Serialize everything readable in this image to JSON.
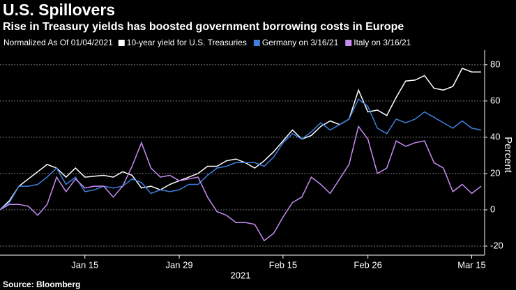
{
  "chart_data": {
    "type": "line",
    "title": "U.S. Spillovers",
    "subtitle": "Rise in Treasury yields has boosted government borrowing costs in Europe",
    "legend_note": "Normalized As Of 01/04/2021",
    "y_label": "Percent",
    "x_label": "2021",
    "source": "Source: Bloomberg",
    "categories": [
      null,
      null,
      null,
      null,
      null,
      null,
      null,
      null,
      null,
      "Jan 15",
      null,
      null,
      null,
      null,
      null,
      null,
      null,
      null,
      null,
      "Jan 29",
      null,
      null,
      null,
      null,
      null,
      null,
      null,
      null,
      null,
      null,
      "Feb 15",
      null,
      null,
      null,
      null,
      null,
      null,
      null,
      null,
      "Feb 26",
      null,
      null,
      null,
      null,
      null,
      null,
      null,
      null,
      null,
      null,
      "Mar 15",
      null
    ],
    "series": [
      {
        "name": "10-year yield for U.S. Treasuries",
        "color": "#ffffff",
        "values": [
          0,
          5,
          13,
          17,
          21,
          25,
          23,
          18,
          23,
          18,
          18.5,
          19,
          18,
          21,
          19,
          12,
          13,
          11,
          14,
          16,
          18,
          20,
          24,
          24,
          27,
          28,
          26,
          23,
          27,
          32,
          38,
          44,
          39,
          41,
          46,
          49,
          47,
          50,
          66,
          54,
          55,
          52,
          62,
          71,
          71.5,
          74,
          67,
          66,
          68,
          78,
          76,
          76
        ]
      },
      {
        "name": "Germany on 3/16/21",
        "color": "#3f80de",
        "values": [
          0,
          4,
          13,
          13,
          14,
          18,
          23,
          14,
          18,
          10,
          11,
          13,
          12,
          13,
          17,
          15,
          9,
          11,
          10,
          11,
          14,
          14,
          19,
          23,
          24,
          26,
          26,
          26,
          24,
          29,
          37,
          42,
          39,
          43,
          48,
          44,
          47,
          50,
          61,
          57,
          45,
          42,
          50,
          48,
          50,
          54,
          51,
          48,
          45,
          49,
          45,
          44
        ]
      },
      {
        "name": "Italy on 3/16/21",
        "color": "#c78cf2",
        "values": [
          0,
          3,
          3,
          2,
          -3,
          3,
          18,
          10,
          17,
          12,
          13,
          13,
          7,
          13,
          24,
          37,
          23,
          18,
          19,
          16,
          17,
          18,
          7,
          -1,
          -3,
          -7,
          -7,
          -8,
          -17,
          -13,
          -4,
          4,
          7,
          18,
          14,
          9,
          17,
          25,
          46,
          39,
          20,
          23,
          38,
          35,
          37,
          38,
          26,
          23,
          10,
          14,
          9,
          13
        ]
      }
    ],
    "ylim": [
      -25,
      88
    ],
    "yticks": [
      -20,
      0,
      20,
      40,
      60,
      80
    ],
    "grid": true
  }
}
